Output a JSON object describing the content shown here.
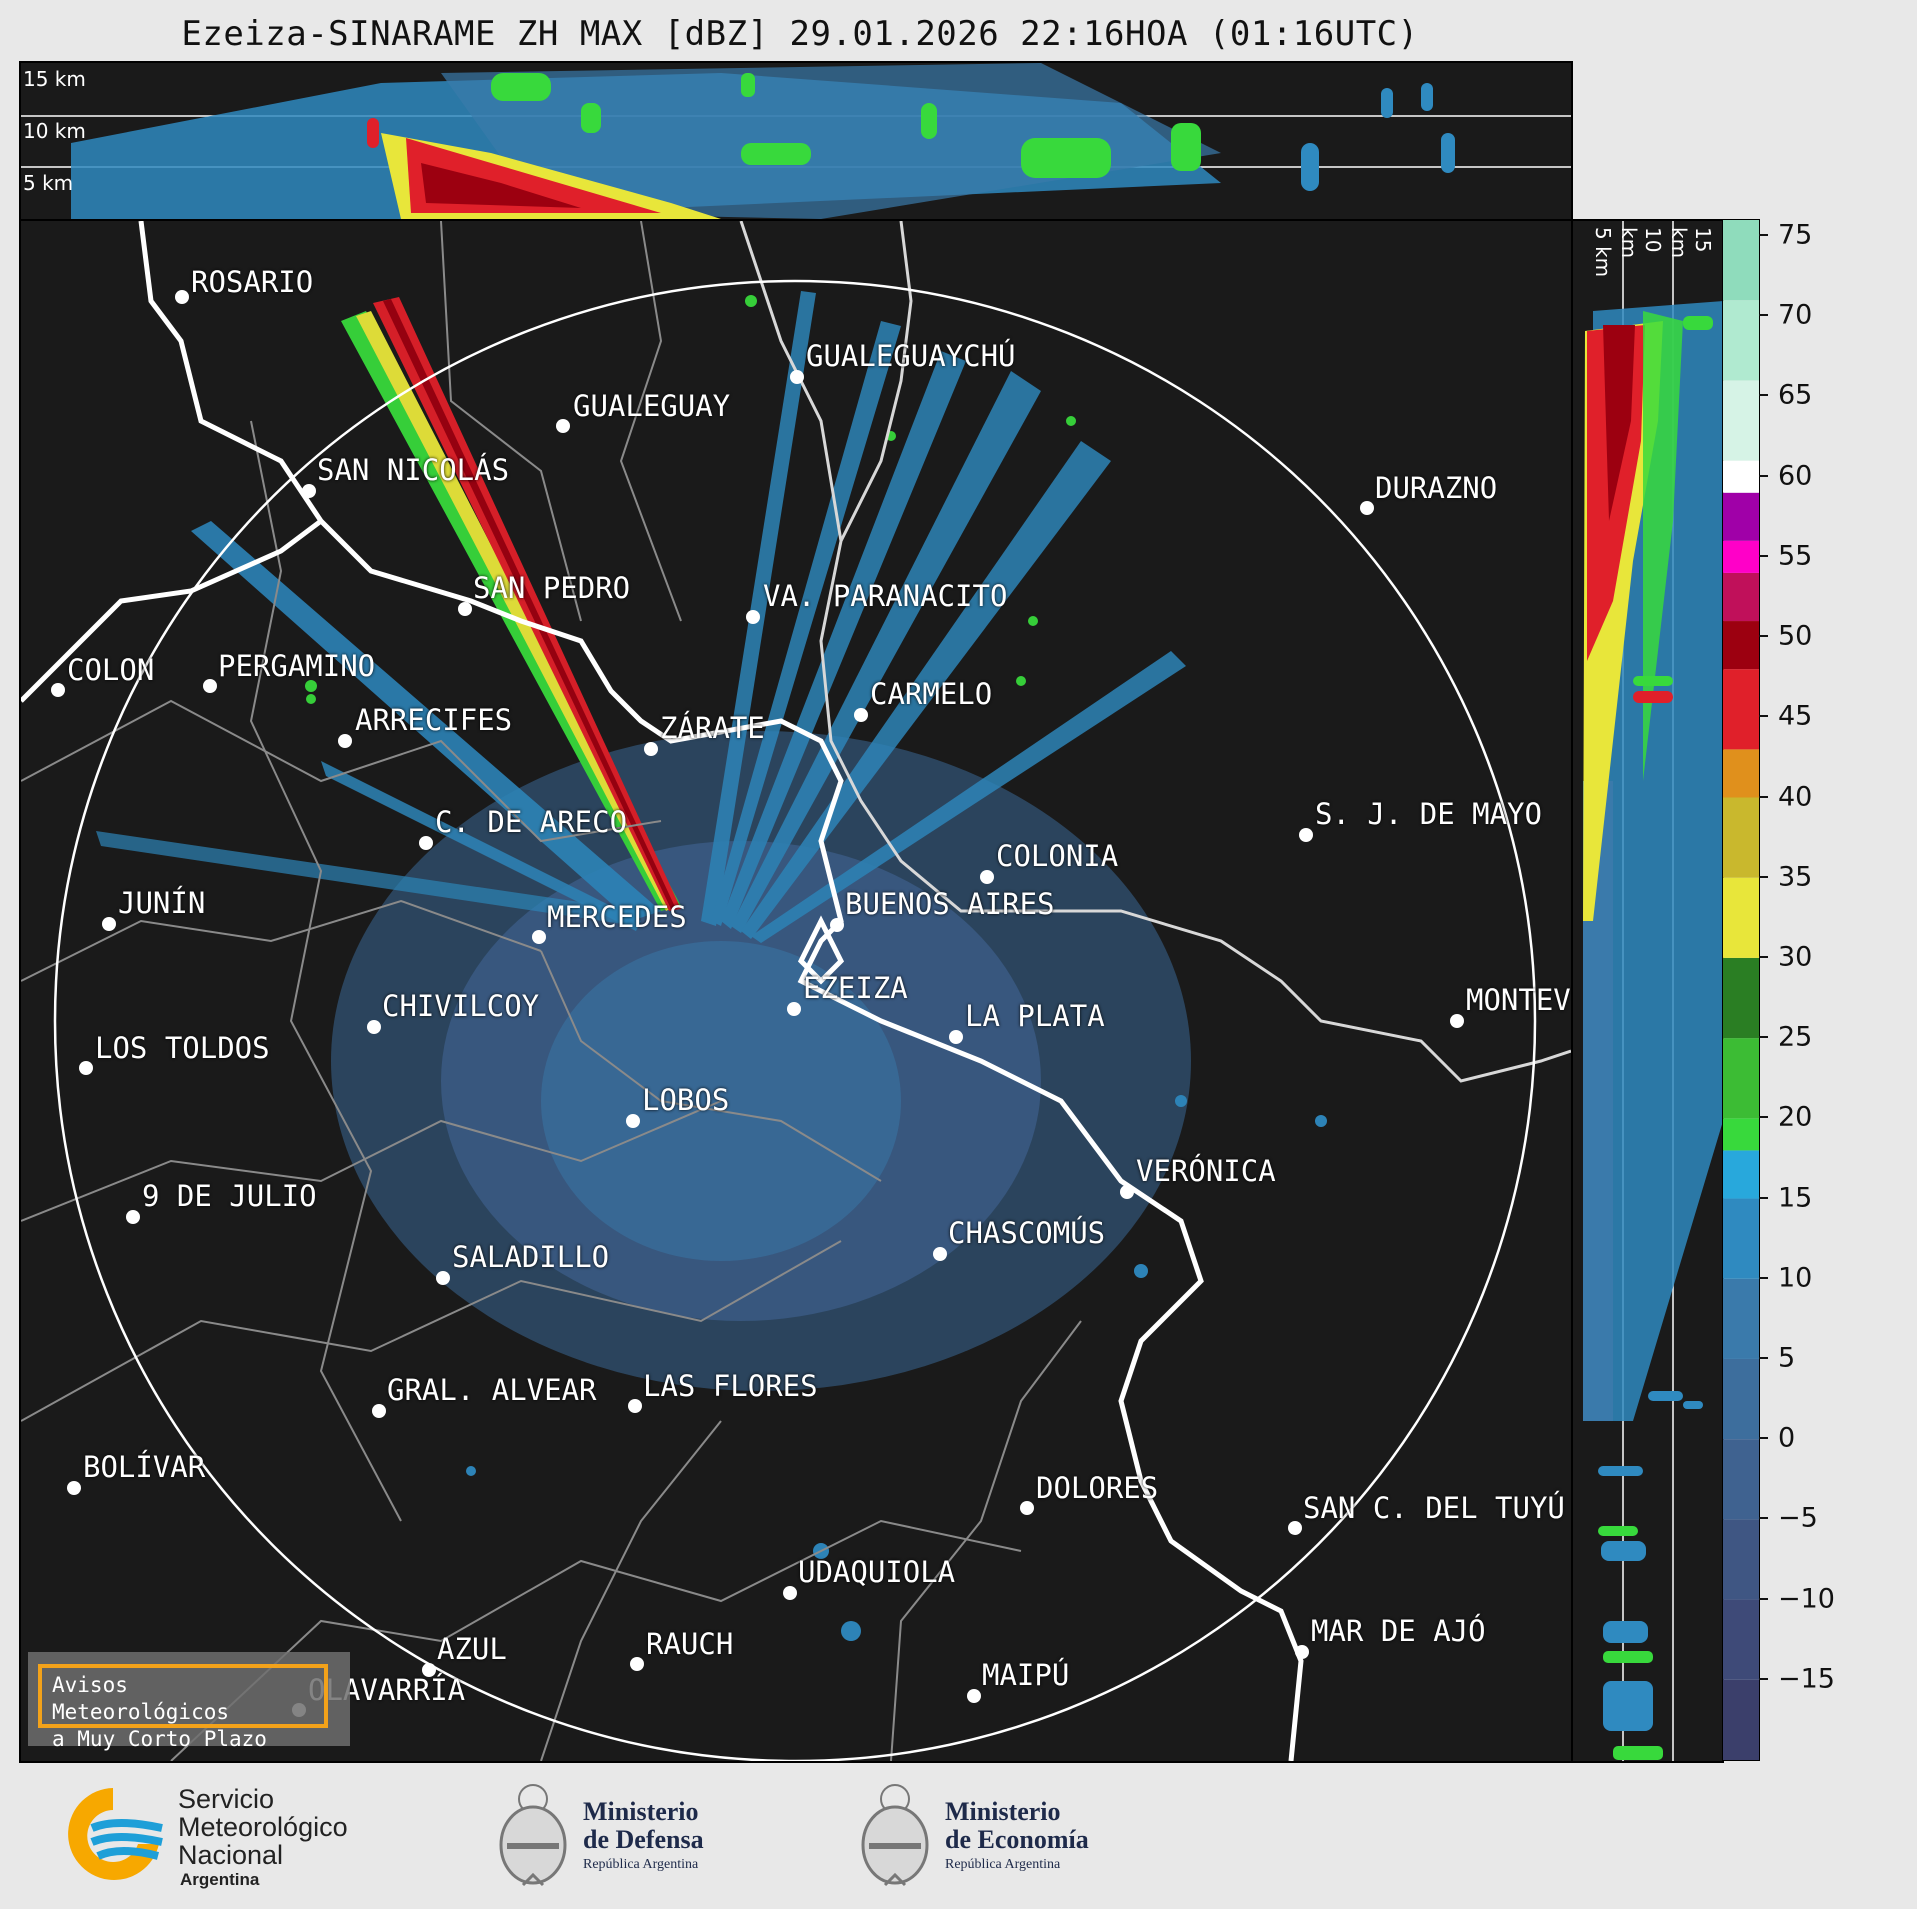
{
  "title": "Ezeiza-SINARAME ZH MAX [dBZ] 29.01.2026 22:16HOA (01:16UTC)",
  "top_panel": {
    "altitude_labels": [
      "15 km",
      "10 km",
      "5 km"
    ]
  },
  "side_panel": {
    "altitude_labels": [
      "5 km",
      "10 km",
      "15 km"
    ]
  },
  "cities": [
    {
      "name": "ROSARIO"
    },
    {
      "name": "GUALEGUAYCHÚ"
    },
    {
      "name": "GUALEGUAY"
    },
    {
      "name": "SAN NICOLÁS"
    },
    {
      "name": "DURAZNO"
    },
    {
      "name": "SAN PEDRO"
    },
    {
      "name": "VA. PARANACITO"
    },
    {
      "name": "COLON"
    },
    {
      "name": "PERGAMINO"
    },
    {
      "name": "CARMELO"
    },
    {
      "name": "ARRECIFES"
    },
    {
      "name": "ZÁRATE"
    },
    {
      "name": "S. J. DE MAYO"
    },
    {
      "name": "C. DE ARECO"
    },
    {
      "name": "COLONIA"
    },
    {
      "name": "JUNÍN"
    },
    {
      "name": "BUENOS AIRES"
    },
    {
      "name": "MERCEDES"
    },
    {
      "name": "EZEIZA"
    },
    {
      "name": "MONTEV"
    },
    {
      "name": "CHIVILCOY"
    },
    {
      "name": "LA PLATA"
    },
    {
      "name": "LOS TOLDOS"
    },
    {
      "name": "LOBOS"
    },
    {
      "name": "VERÓNICA"
    },
    {
      "name": "9 DE JULIO"
    },
    {
      "name": "CHASCOMÚS"
    },
    {
      "name": "SALADILLO"
    },
    {
      "name": "GRAL. ALVEAR"
    },
    {
      "name": "LAS FLORES"
    },
    {
      "name": "BOLÍVAR"
    },
    {
      "name": "DOLORES"
    },
    {
      "name": "SAN C. DEL TUYÚ"
    },
    {
      "name": "UDAQUIOLA"
    },
    {
      "name": "MAR DE AJÓ"
    },
    {
      "name": "AZUL"
    },
    {
      "name": "RAUCH"
    },
    {
      "name": "OLAVARRÍA"
    },
    {
      "name": "MAIPÚ"
    }
  ],
  "colorbar": {
    "ticks": [
      "75",
      "70",
      "65",
      "60",
      "55",
      "50",
      "45",
      "40",
      "35",
      "30",
      "25",
      "20",
      "15",
      "10",
      "5",
      "0",
      "−5",
      "−10",
      "−15"
    ],
    "tick_values": [
      75,
      70,
      65,
      60,
      55,
      50,
      45,
      40,
      35,
      30,
      25,
      20,
      15,
      10,
      5,
      0,
      -5,
      -10,
      -15
    ],
    "range": [
      -20,
      76
    ],
    "stops": [
      {
        "from": -20,
        "to": -15,
        "color": "#3b3f6b"
      },
      {
        "from": -15,
        "to": -10,
        "color": "#3e4a78"
      },
      {
        "from": -10,
        "to": -5,
        "color": "#3f5683"
      },
      {
        "from": -5,
        "to": 0,
        "color": "#3f6290"
      },
      {
        "from": 0,
        "to": 5,
        "color": "#3d6e9d"
      },
      {
        "from": 5,
        "to": 10,
        "color": "#3a7aab"
      },
      {
        "from": 10,
        "to": 15,
        "color": "#2f8ac0"
      },
      {
        "from": 15,
        "to": 18,
        "color": "#28a8dc"
      },
      {
        "from": 18,
        "to": 20,
        "color": "#38d93c"
      },
      {
        "from": 20,
        "to": 25,
        "color": "#3cbc34"
      },
      {
        "from": 25,
        "to": 30,
        "color": "#2a7e23"
      },
      {
        "from": 30,
        "to": 35,
        "color": "#e8e63a"
      },
      {
        "from": 35,
        "to": 40,
        "color": "#c9b82d"
      },
      {
        "from": 40,
        "to": 43,
        "color": "#e0901c"
      },
      {
        "from": 43,
        "to": 48,
        "color": "#e0202a"
      },
      {
        "from": 48,
        "to": 51,
        "color": "#9c0010"
      },
      {
        "from": 51,
        "to": 54,
        "color": "#c0105a"
      },
      {
        "from": 54,
        "to": 56,
        "color": "#ff00c8"
      },
      {
        "from": 56,
        "to": 59,
        "color": "#a000a8"
      },
      {
        "from": 59,
        "to": 61,
        "color": "#ffffff"
      },
      {
        "from": 61,
        "to": 66,
        "color": "#d6f3e6"
      },
      {
        "from": 66,
        "to": 71,
        "color": "#b0ead0"
      },
      {
        "from": 71,
        "to": 76,
        "color": "#8fdcbc"
      }
    ]
  },
  "warning_box": {
    "line1": "Avisos Meteorológicos",
    "line2": "a Muy Corto Plazo"
  },
  "logos": {
    "smn": {
      "line1": "Servicio",
      "line2": "Meteorológico",
      "line3": "Nacional",
      "line4": "Argentina"
    },
    "defensa": {
      "line1": "Ministerio",
      "line2": "de Defensa",
      "line3": "República Argentina"
    },
    "economia": {
      "line1": "Ministerio",
      "line2": "de Economía",
      "line3": "República Argentina"
    }
  }
}
